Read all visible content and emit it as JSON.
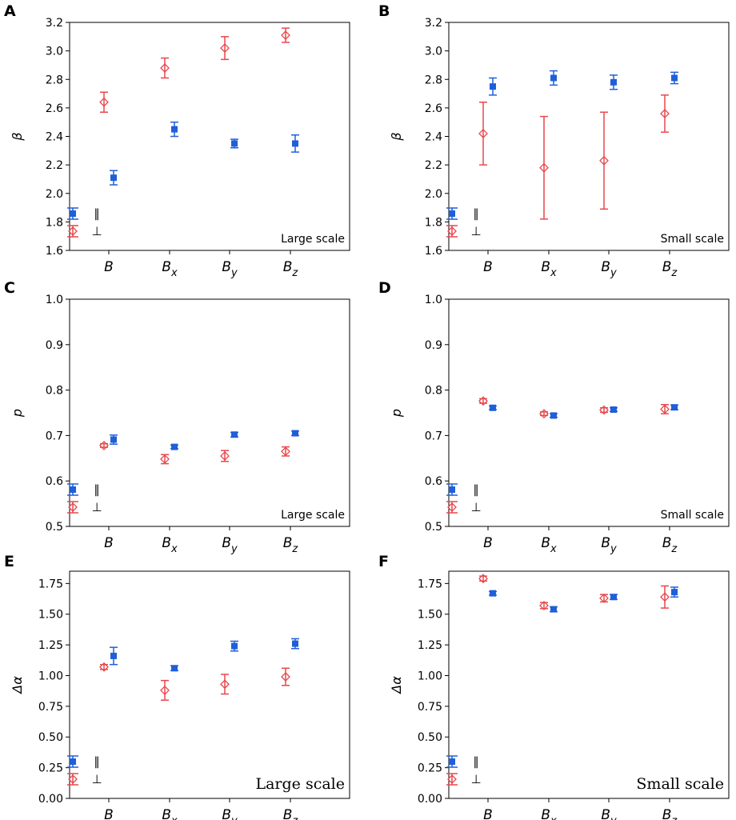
{
  "colors": {
    "parallel": "#1f5fd8",
    "perpendicular": "#e8474c"
  },
  "legend": {
    "parallel_symbol": "∥",
    "perpendicular_symbol": "⊥"
  },
  "chart_data": [
    {
      "panel": "A",
      "type": "scatter",
      "ylabel": "β",
      "annotation": "Large scale",
      "categories": [
        {
          "base": "B",
          "sub": ""
        },
        {
          "base": "B",
          "sub": "x"
        },
        {
          "base": "B",
          "sub": "y"
        },
        {
          "base": "B",
          "sub": "z"
        }
      ],
      "ylim": [
        1.6,
        3.2
      ],
      "yticks": [
        "1.6",
        "1.8",
        "2.0",
        "2.2",
        "2.4",
        "2.6",
        "2.8",
        "3.0",
        "3.2"
      ],
      "series": [
        {
          "name": "∥",
          "marker": "square",
          "values": [
            2.11,
            2.45,
            2.35,
            2.35
          ],
          "errors": [
            0.05,
            0.05,
            0.03,
            0.06
          ]
        },
        {
          "name": "⊥",
          "marker": "diamond",
          "values": [
            2.64,
            2.88,
            3.02,
            3.11
          ],
          "errors": [
            0.07,
            0.07,
            0.08,
            0.05
          ]
        }
      ]
    },
    {
      "panel": "B",
      "type": "scatter",
      "ylabel": "β",
      "annotation": "Small scale",
      "categories": [
        {
          "base": "B",
          "sub": ""
        },
        {
          "base": "B",
          "sub": "x"
        },
        {
          "base": "B",
          "sub": "y"
        },
        {
          "base": "B",
          "sub": "z"
        }
      ],
      "ylim": [
        1.6,
        3.2
      ],
      "yticks": [
        "1.6",
        "1.8",
        "2.0",
        "2.2",
        "2.4",
        "2.6",
        "2.8",
        "3.0",
        "3.2"
      ],
      "series": [
        {
          "name": "∥",
          "marker": "square",
          "values": [
            2.75,
            2.81,
            2.78,
            2.81
          ],
          "errors": [
            0.06,
            0.05,
            0.05,
            0.04
          ]
        },
        {
          "name": "⊥",
          "marker": "diamond",
          "values": [
            2.42,
            2.18,
            2.23,
            2.56
          ],
          "errors": [
            0.22,
            0.36,
            0.34,
            0.13
          ]
        }
      ]
    },
    {
      "panel": "C",
      "type": "scatter",
      "ylabel": "p",
      "annotation": "Large scale",
      "categories": [
        {
          "base": "B",
          "sub": ""
        },
        {
          "base": "B",
          "sub": "x"
        },
        {
          "base": "B",
          "sub": "y"
        },
        {
          "base": "B",
          "sub": "z"
        }
      ],
      "ylim": [
        0.5,
        1.0
      ],
      "yticks": [
        "0.5",
        "0.6",
        "0.7",
        "0.8",
        "0.9",
        "1.0"
      ],
      "series": [
        {
          "name": "∥",
          "marker": "square",
          "values": [
            0.691,
            0.675,
            0.702,
            0.705
          ],
          "errors": [
            0.01,
            0.004,
            0.005,
            0.005
          ]
        },
        {
          "name": "⊥",
          "marker": "diamond",
          "values": [
            0.678,
            0.648,
            0.655,
            0.665
          ],
          "errors": [
            0.004,
            0.01,
            0.012,
            0.01
          ]
        }
      ]
    },
    {
      "panel": "D",
      "type": "scatter",
      "ylabel": "p",
      "annotation": "Small scale",
      "categories": [
        {
          "base": "B",
          "sub": ""
        },
        {
          "base": "B",
          "sub": "x"
        },
        {
          "base": "B",
          "sub": "y"
        },
        {
          "base": "B",
          "sub": "z"
        }
      ],
      "ylim": [
        0.5,
        1.0
      ],
      "yticks": [
        "0.5",
        "0.6",
        "0.7",
        "0.8",
        "0.9",
        "1.0"
      ],
      "series": [
        {
          "name": "∥",
          "marker": "square",
          "values": [
            0.761,
            0.744,
            0.757,
            0.762
          ],
          "errors": [
            0.004,
            0.004,
            0.004,
            0.005
          ]
        },
        {
          "name": "⊥",
          "marker": "diamond",
          "values": [
            0.776,
            0.748,
            0.756,
            0.758
          ],
          "errors": [
            0.005,
            0.004,
            0.005,
            0.01
          ]
        }
      ]
    },
    {
      "panel": "E",
      "type": "scatter",
      "ylabel": "Δα",
      "annotation": "Large scale",
      "categories": [
        {
          "base": "B",
          "sub": ""
        },
        {
          "base": "B",
          "sub": "x"
        },
        {
          "base": "B",
          "sub": "y"
        },
        {
          "base": "B",
          "sub": "z"
        }
      ],
      "ylim": [
        0.0,
        1.85
      ],
      "yticks": [
        "0.00",
        "0.25",
        "0.50",
        "0.75",
        "1.00",
        "1.25",
        "1.50",
        "1.75"
      ],
      "series": [
        {
          "name": "∥",
          "marker": "square",
          "values": [
            1.16,
            1.06,
            1.24,
            1.26
          ],
          "errors": [
            0.07,
            0.02,
            0.04,
            0.04
          ]
        },
        {
          "name": "⊥",
          "marker": "diamond",
          "values": [
            1.07,
            0.88,
            0.93,
            0.99
          ],
          "errors": [
            0.02,
            0.08,
            0.08,
            0.07
          ]
        }
      ]
    },
    {
      "panel": "F",
      "type": "scatter",
      "ylabel": "Δα",
      "annotation": "Small scale",
      "categories": [
        {
          "base": "B",
          "sub": ""
        },
        {
          "base": "B",
          "sub": "x"
        },
        {
          "base": "B",
          "sub": "y"
        },
        {
          "base": "B",
          "sub": "z"
        }
      ],
      "ylim": [
        0.0,
        1.85
      ],
      "yticks": [
        "0.00",
        "0.25",
        "0.50",
        "0.75",
        "1.00",
        "1.25",
        "1.50",
        "1.75"
      ],
      "series": [
        {
          "name": "∥",
          "marker": "square",
          "values": [
            1.67,
            1.54,
            1.64,
            1.68
          ],
          "errors": [
            0.015,
            0.02,
            0.02,
            0.04
          ]
        },
        {
          "name": "⊥",
          "marker": "diamond",
          "values": [
            1.79,
            1.57,
            1.63,
            1.64
          ],
          "errors": [
            0.02,
            0.025,
            0.03,
            0.09
          ]
        }
      ]
    }
  ]
}
